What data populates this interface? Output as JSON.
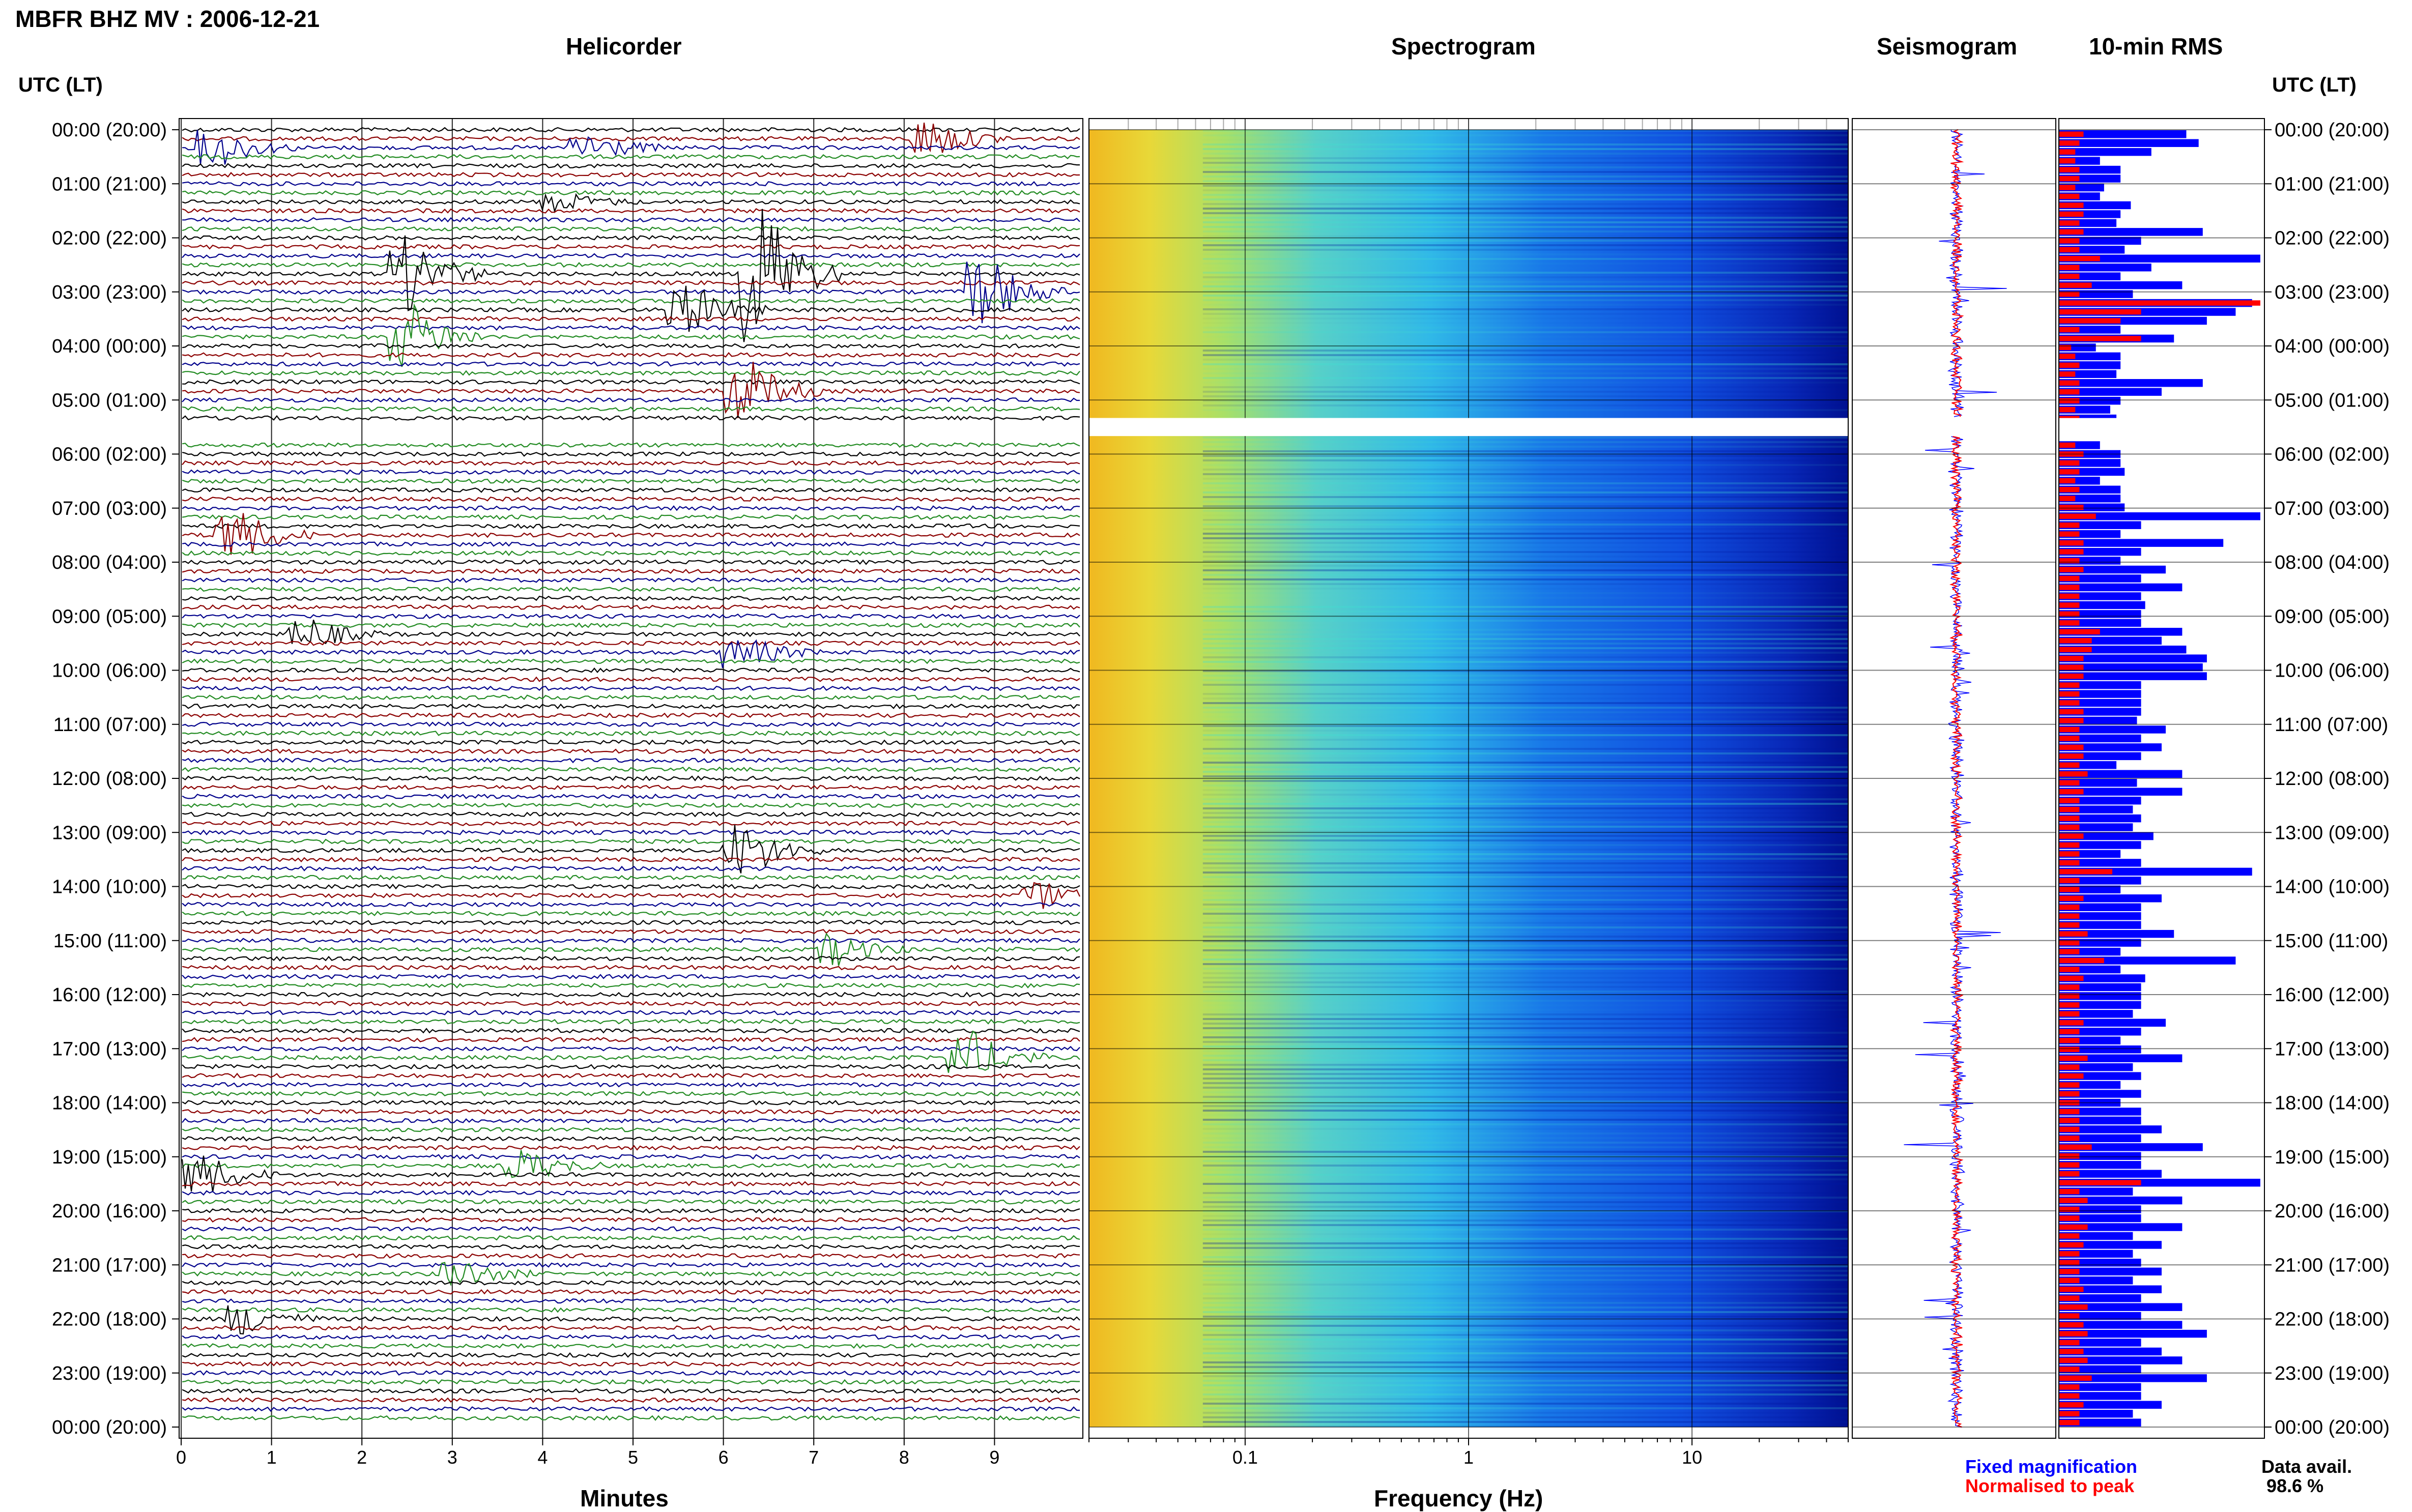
{
  "title": "MBFR BHZ MV : 2006-12-21",
  "panels": {
    "helicorder": "Helicorder",
    "spectrogram": "Spectrogram",
    "seismogram": "Seismogram",
    "rms": "10-min RMS"
  },
  "axis": {
    "time_label": "UTC (LT)",
    "minutes_label": "Minutes",
    "frequency_label": "Frequency (Hz)"
  },
  "legend": {
    "fixed": "Fixed magnification",
    "normalised": "Normalised to peak",
    "fixed_color": "#0000ff",
    "normalised_color": "#ff0000"
  },
  "data_avail": {
    "label": "Data avail.",
    "value": "98.6 %"
  },
  "colors": {
    "trace_colors": [
      "#000000",
      "#8b0000",
      "#00008b",
      "#228b22"
    ],
    "rms_fixed": "#0000ff",
    "rms_normalised": "#ff0000"
  },
  "chart_data": {
    "type": "heatmap",
    "time_ticks": [
      "00:00 (20:00)",
      "01:00 (21:00)",
      "02:00 (22:00)",
      "03:00 (23:00)",
      "04:00 (00:00)",
      "05:00 (01:00)",
      "06:00 (02:00)",
      "07:00 (03:00)",
      "08:00 (04:00)",
      "09:00 (05:00)",
      "10:00 (06:00)",
      "11:00 (07:00)",
      "12:00 (08:00)",
      "13:00 (09:00)",
      "14:00 (10:00)",
      "15:00 (11:00)",
      "16:00 (12:00)",
      "17:00 (13:00)",
      "18:00 (14:00)",
      "19:00 (15:00)",
      "20:00 (16:00)",
      "21:00 (17:00)",
      "22:00 (18:00)",
      "23:00 (19:00)",
      "00:00 (20:00)"
    ],
    "minute_ticks": [
      "0",
      "1",
      "2",
      "3",
      "4",
      "5",
      "6",
      "7",
      "8",
      "9"
    ],
    "frequency_ticks": [
      "0.1",
      "1",
      "10"
    ],
    "frequency_range": [
      0.02,
      50
    ],
    "data_gap": [
      "05:20",
      "05:40"
    ],
    "events": [
      {
        "hour": 0,
        "minute": 4.6,
        "amp": 0.7
      },
      {
        "hour": 0,
        "minute": 8.4,
        "amp": 0.9
      },
      {
        "hour": 0,
        "minute": 0.5,
        "amp": 0.8
      },
      {
        "hour": 1,
        "minute": 4.3,
        "amp": 0.4
      },
      {
        "hour": 2,
        "minute": 2.6,
        "amp": 1.8
      },
      {
        "hour": 2,
        "minute": 6.5,
        "amp": 3.5
      },
      {
        "hour": 3,
        "minute": 2.6,
        "amp": 1.5
      },
      {
        "hour": 3,
        "minute": 5.7,
        "amp": 1.2
      },
      {
        "hour": 3,
        "minute": 9.0,
        "amp": 1.6
      },
      {
        "hour": 4,
        "minute": 6.3,
        "amp": 1.6
      },
      {
        "hour": 7,
        "minute": 0.7,
        "amp": 1.2
      },
      {
        "hour": 9,
        "minute": 1.5,
        "amp": 0.7
      },
      {
        "hour": 9,
        "minute": 6.3,
        "amp": 0.7
      },
      {
        "hour": 13,
        "minute": 6.3,
        "amp": 1.3
      },
      {
        "hour": 14,
        "minute": 9.6,
        "amp": 0.6
      },
      {
        "hour": 15,
        "minute": 7.3,
        "amp": 0.7
      },
      {
        "hour": 17,
        "minute": 8.8,
        "amp": 1.2
      },
      {
        "hour": 19,
        "minute": 3.9,
        "amp": 0.7
      },
      {
        "hour": 19,
        "minute": 0.3,
        "amp": 1.0
      },
      {
        "hour": 21,
        "minute": 3.2,
        "amp": 0.6
      },
      {
        "hour": 22,
        "minute": 0.8,
        "amp": 0.7
      }
    ],
    "rms_fixed": [
      0.62,
      0.68,
      0.45,
      0.2,
      0.3,
      0.3,
      0.22,
      0.2,
      0.35,
      0.3,
      0.28,
      0.7,
      0.4,
      0.32,
      0.98,
      0.45,
      0.3,
      0.6,
      0.36,
      0.94,
      0.86,
      0.72,
      0.3,
      0.56,
      0.18,
      0.3,
      0.3,
      0.28,
      0.7,
      0.5,
      0.3,
      0.25,
      0.28,
      0.22,
      0.3,
      0.2,
      0.3,
      0.3,
      0.32,
      0.2,
      0.3,
      0.3,
      0.32,
      0.98,
      0.4,
      0.3,
      0.8,
      0.4,
      0.3,
      0.52,
      0.4,
      0.6,
      0.4,
      0.42,
      0.4,
      0.4,
      0.6,
      0.5,
      0.62,
      0.72,
      0.7,
      0.72,
      0.4,
      0.4,
      0.4,
      0.4,
      0.38,
      0.52,
      0.4,
      0.5,
      0.4,
      0.28,
      0.6,
      0.38,
      0.6,
      0.4,
      0.36,
      0.4,
      0.36,
      0.46,
      0.4,
      0.3,
      0.4,
      0.94,
      0.4,
      0.3,
      0.5,
      0.4,
      0.4,
      0.4,
      0.56,
      0.4,
      0.3,
      0.86,
      0.3,
      0.42,
      0.4,
      0.4,
      0.4,
      0.36,
      0.52,
      0.4,
      0.3,
      0.4,
      0.6,
      0.36,
      0.4,
      0.3,
      0.4,
      0.3,
      0.4,
      0.4,
      0.5,
      0.4,
      0.7,
      0.4,
      0.4,
      0.5,
      0.98,
      0.36,
      0.6,
      0.4,
      0.4,
      0.6,
      0.36,
      0.5,
      0.36,
      0.4,
      0.5,
      0.36,
      0.5,
      0.4,
      0.6,
      0.4,
      0.6,
      0.72,
      0.4,
      0.5,
      0.6,
      0.4,
      0.72,
      0.4,
      0.4,
      0.5,
      0.36,
      0.4
    ],
    "rms_normalised": [
      0.12,
      0.1,
      0.08,
      0.08,
      0.1,
      0.1,
      0.08,
      0.1,
      0.12,
      0.12,
      0.1,
      0.12,
      0.1,
      0.1,
      0.2,
      0.1,
      0.1,
      0.16,
      0.1,
      0.98,
      0.4,
      0.3,
      0.1,
      0.4,
      0.06,
      0.08,
      0.1,
      0.08,
      0.1,
      0.1,
      0.1,
      0.08,
      0.1,
      0.08,
      0.1,
      0.08,
      0.12,
      0.1,
      0.1,
      0.08,
      0.1,
      0.08,
      0.12,
      0.18,
      0.1,
      0.1,
      0.12,
      0.12,
      0.1,
      0.12,
      0.1,
      0.1,
      0.1,
      0.1,
      0.1,
      0.1,
      0.2,
      0.16,
      0.16,
      0.12,
      0.12,
      0.12,
      0.1,
      0.1,
      0.1,
      0.12,
      0.12,
      0.1,
      0.1,
      0.12,
      0.12,
      0.1,
      0.14,
      0.1,
      0.12,
      0.1,
      0.1,
      0.1,
      0.1,
      0.12,
      0.1,
      0.1,
      0.1,
      0.26,
      0.1,
      0.1,
      0.12,
      0.1,
      0.1,
      0.1,
      0.14,
      0.1,
      0.1,
      0.22,
      0.1,
      0.12,
      0.1,
      0.1,
      0.1,
      0.1,
      0.12,
      0.1,
      0.1,
      0.1,
      0.14,
      0.1,
      0.12,
      0.1,
      0.1,
      0.1,
      0.1,
      0.1,
      0.1,
      0.1,
      0.16,
      0.1,
      0.1,
      0.1,
      0.4,
      0.1,
      0.14,
      0.1,
      0.1,
      0.14,
      0.1,
      0.12,
      0.1,
      0.1,
      0.1,
      0.1,
      0.12,
      0.1,
      0.14,
      0.1,
      0.12,
      0.14,
      0.1,
      0.12,
      0.14,
      0.1,
      0.16,
      0.1,
      0.1,
      0.12,
      0.1,
      0.1
    ]
  }
}
